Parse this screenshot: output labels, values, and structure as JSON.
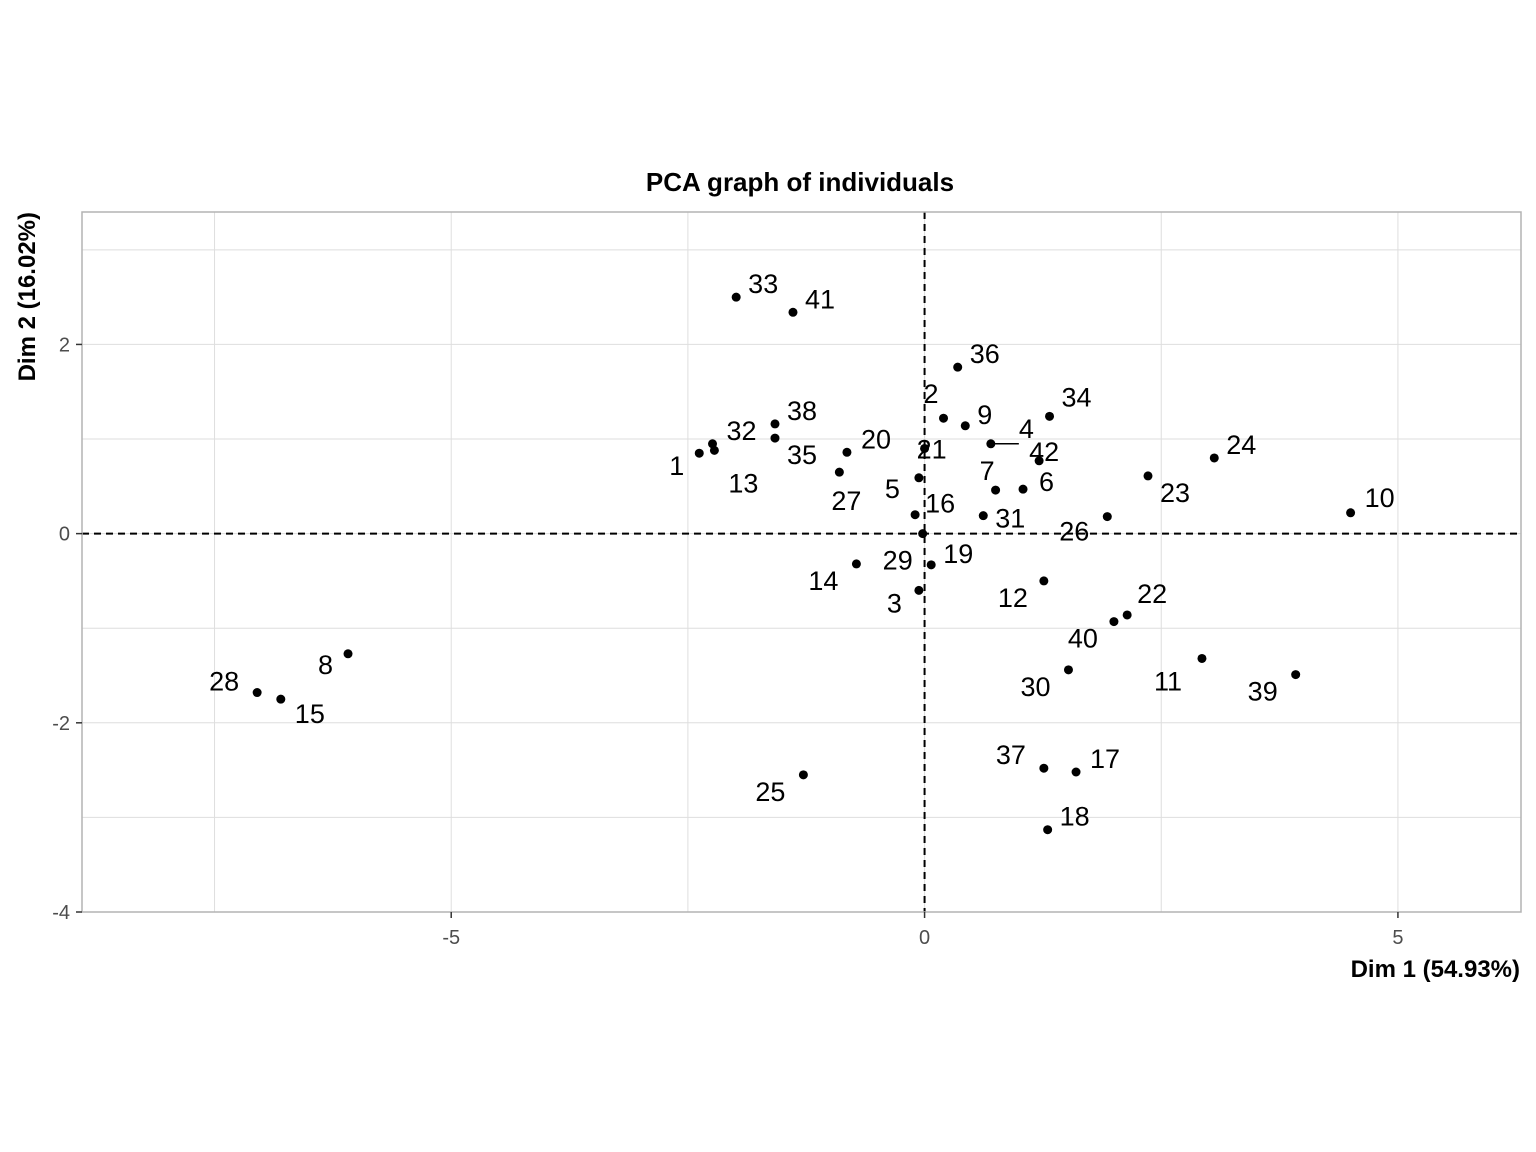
{
  "chart_data": {
    "type": "scatter",
    "title": "PCA graph of individuals",
    "xlabel": "Dim 1 (54.93%)",
    "ylabel": "Dim 2 (16.02%)",
    "xlim": [
      -8.9,
      6.3
    ],
    "ylim": [
      -4.0,
      3.4
    ],
    "x_ticks": [
      -5,
      0,
      5
    ],
    "y_ticks": [
      -4,
      -2,
      0,
      2
    ],
    "x_tick_labels": [
      "-5",
      "0",
      "5"
    ],
    "y_tick_labels": [
      "-4",
      "-2",
      "0",
      "2"
    ],
    "reference_lines": {
      "x": 0,
      "y": 0,
      "style": "dashed"
    },
    "grid": true,
    "points": [
      {
        "label": "1",
        "x": -2.38,
        "y": 0.85
      },
      {
        "label": "2",
        "x": 0.2,
        "y": 1.22
      },
      {
        "label": "3",
        "x": -0.06,
        "y": -0.6
      },
      {
        "label": "4",
        "x": 0.7,
        "y": 0.95
      },
      {
        "label": "5",
        "x": -0.06,
        "y": 0.59
      },
      {
        "label": "6",
        "x": 1.04,
        "y": 0.47
      },
      {
        "label": "7",
        "x": 0.75,
        "y": 0.46
      },
      {
        "label": "8",
        "x": -6.09,
        "y": -1.27
      },
      {
        "label": "9",
        "x": 0.43,
        "y": 1.14
      },
      {
        "label": "10",
        "x": 4.5,
        "y": 0.22
      },
      {
        "label": "11",
        "x": 2.93,
        "y": -1.32
      },
      {
        "label": "12",
        "x": 1.26,
        "y": -0.5
      },
      {
        "label": "13",
        "x": -2.22,
        "y": 0.88
      },
      {
        "label": "14",
        "x": -0.72,
        "y": -0.32
      },
      {
        "label": "15",
        "x": -6.8,
        "y": -1.75
      },
      {
        "label": "16",
        "x": -0.1,
        "y": 0.2
      },
      {
        "label": "17",
        "x": 1.6,
        "y": -2.52
      },
      {
        "label": "18",
        "x": 1.3,
        "y": -3.13
      },
      {
        "label": "19",
        "x": 0.07,
        "y": -0.33
      },
      {
        "label": "20",
        "x": -0.82,
        "y": 0.86
      },
      {
        "label": "21",
        "x": 0.0,
        "y": 0.9
      },
      {
        "label": "22",
        "x": 2.14,
        "y": -0.86
      },
      {
        "label": "23",
        "x": 2.36,
        "y": 0.61
      },
      {
        "label": "24",
        "x": 3.06,
        "y": 0.8
      },
      {
        "label": "25",
        "x": -1.28,
        "y": -2.55
      },
      {
        "label": "26",
        "x": 1.93,
        "y": 0.18
      },
      {
        "label": "27",
        "x": -0.9,
        "y": 0.65
      },
      {
        "label": "28",
        "x": -7.05,
        "y": -1.68
      },
      {
        "label": "29",
        "x": -0.02,
        "y": 0.0
      },
      {
        "label": "30",
        "x": 1.52,
        "y": -1.44
      },
      {
        "label": "31",
        "x": 0.62,
        "y": 0.19
      },
      {
        "label": "32",
        "x": -2.24,
        "y": 0.95
      },
      {
        "label": "33",
        "x": -1.99,
        "y": 2.5
      },
      {
        "label": "34",
        "x": 1.32,
        "y": 1.24
      },
      {
        "label": "35",
        "x": -1.58,
        "y": 1.01
      },
      {
        "label": "36",
        "x": 0.35,
        "y": 1.76
      },
      {
        "label": "37",
        "x": 1.26,
        "y": -2.48
      },
      {
        "label": "38",
        "x": -1.58,
        "y": 1.16
      },
      {
        "label": "39",
        "x": 3.92,
        "y": -1.49
      },
      {
        "label": "40",
        "x": 2.0,
        "y": -0.93
      },
      {
        "label": "41",
        "x": -1.39,
        "y": 2.34
      },
      {
        "label": "42",
        "x": 1.21,
        "y": 0.77
      }
    ]
  }
}
